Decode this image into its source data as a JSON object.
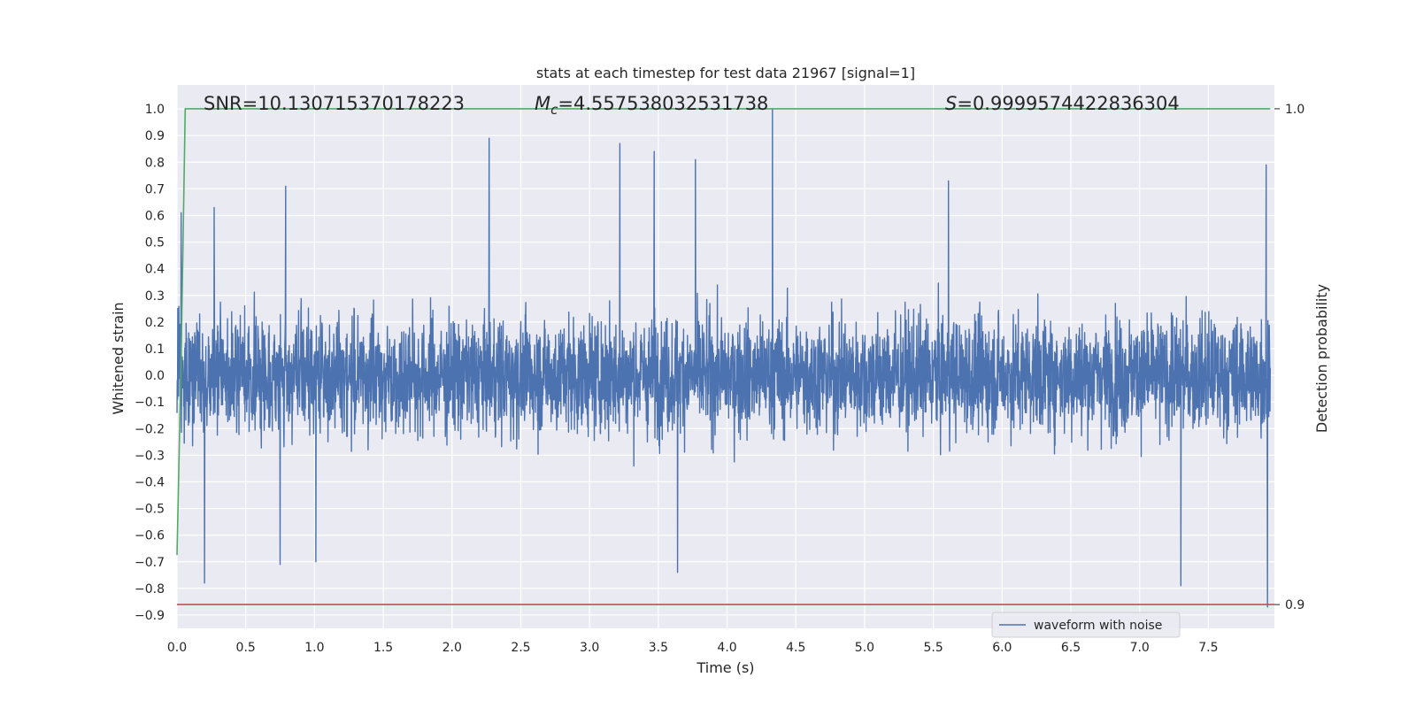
{
  "chart_data": {
    "type": "line",
    "title": "stats at each timestep for test data 21967 [signal=1]",
    "xlabel": "Time (s)",
    "ylabel": "Whitened strain",
    "ylabel_right": "Detection probability",
    "xlim": [
      0.0,
      7.98
    ],
    "ylim": [
      -0.95,
      1.09
    ],
    "x_ticks": [
      "0.0",
      "0.5",
      "1.0",
      "1.5",
      "2.0",
      "2.5",
      "3.0",
      "3.5",
      "4.0",
      "4.5",
      "5.0",
      "5.5",
      "6.0",
      "6.5",
      "7.0",
      "7.5"
    ],
    "y_ticks": [
      "1.0",
      "0.9",
      "0.8",
      "0.7",
      "0.6",
      "0.5",
      "0.4",
      "0.3",
      "0.2",
      "0.1",
      "0.0",
      "−0.1",
      "−0.2",
      "−0.3",
      "−0.4",
      "−0.5",
      "−0.6",
      "−0.7",
      "−0.8",
      "−0.9"
    ],
    "y_right_ticks": [
      "1.0",
      "0.9"
    ],
    "grid": true,
    "legend": {
      "position": "lower center-right",
      "entries": [
        "waveform with noise"
      ]
    },
    "annotations": {
      "snr": "SNR=10.130715370178223",
      "mc_symbol": "M",
      "mc_subscript": "c",
      "mc_value": "=4.557538032531738",
      "s_symbol": "S",
      "s_value": "=0.9999574422836304"
    },
    "series": [
      {
        "name": "waveform with noise",
        "axis": "left",
        "color": "#4c72b0",
        "sample_rate_hz": 2048,
        "duration_s": 7.95,
        "amplitude_envelope": "noise roughly within [-0.6, 0.6], peaks from -0.87 to 1.0",
        "spikes": [
          {
            "x": 0.03,
            "y": 0.61
          },
          {
            "x": 0.2,
            "y": -0.78
          },
          {
            "x": 0.27,
            "y": 0.63
          },
          {
            "x": 0.75,
            "y": -0.71
          },
          {
            "x": 0.79,
            "y": 0.71
          },
          {
            "x": 1.01,
            "y": -0.7
          },
          {
            "x": 2.27,
            "y": 0.89
          },
          {
            "x": 3.22,
            "y": 0.87
          },
          {
            "x": 3.47,
            "y": 0.84
          },
          {
            "x": 3.64,
            "y": -0.74
          },
          {
            "x": 3.77,
            "y": 0.81
          },
          {
            "x": 4.33,
            "y": 1.0
          },
          {
            "x": 5.61,
            "y": 0.73
          },
          {
            "x": 7.3,
            "y": -0.79
          },
          {
            "x": 7.92,
            "y": 0.79
          },
          {
            "x": 7.93,
            "y": -0.87
          }
        ]
      },
      {
        "name": "",
        "axis": "right",
        "color": "#55a868",
        "points": [
          [
            0.0,
            0.91
          ],
          [
            0.03,
            0.95
          ],
          [
            0.06,
            1.0
          ],
          [
            7.95,
            1.0
          ]
        ]
      },
      {
        "name": "",
        "axis": "right",
        "color": "#c44e52",
        "points": [
          [
            0.0,
            0.9
          ],
          [
            7.98,
            0.9
          ]
        ]
      }
    ],
    "ylim_right": [
      0.8952,
      1.0048
    ]
  }
}
